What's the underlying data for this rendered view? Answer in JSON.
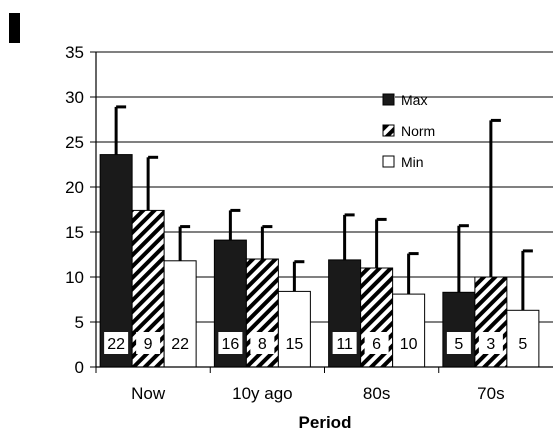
{
  "chart_data": {
    "type": "bar",
    "title": "",
    "xlabel": "Period",
    "ylabel": "",
    "ylim": [
      0,
      35
    ],
    "yticks": [
      0,
      5,
      10,
      15,
      20,
      25,
      30,
      35
    ],
    "grid": true,
    "legend_position": "top-right",
    "categories": [
      "Now",
      "10y ago",
      "80s",
      "70s"
    ],
    "series": [
      {
        "name": "Max",
        "pattern": "solid",
        "color": "#1a1a1a",
        "values": [
          23.6,
          14.1,
          11.9,
          8.3
        ],
        "error_upper": [
          28.9,
          17.4,
          16.9,
          15.7
        ],
        "n": [
          "22",
          "16",
          "11",
          "5"
        ]
      },
      {
        "name": "Norm",
        "pattern": "hatched",
        "color": "#000000",
        "values": [
          17.4,
          12.0,
          11.0,
          10.0
        ],
        "error_upper": [
          23.3,
          15.6,
          16.4,
          27.4
        ],
        "n": [
          "9",
          "8",
          "6",
          "3"
        ]
      },
      {
        "name": "Min",
        "pattern": "white",
        "color": "#ffffff",
        "values": [
          11.8,
          8.4,
          8.1,
          6.3
        ],
        "error_upper": [
          15.6,
          11.7,
          12.6,
          12.9
        ],
        "n": [
          "22",
          "15",
          "10",
          "5"
        ]
      }
    ]
  }
}
